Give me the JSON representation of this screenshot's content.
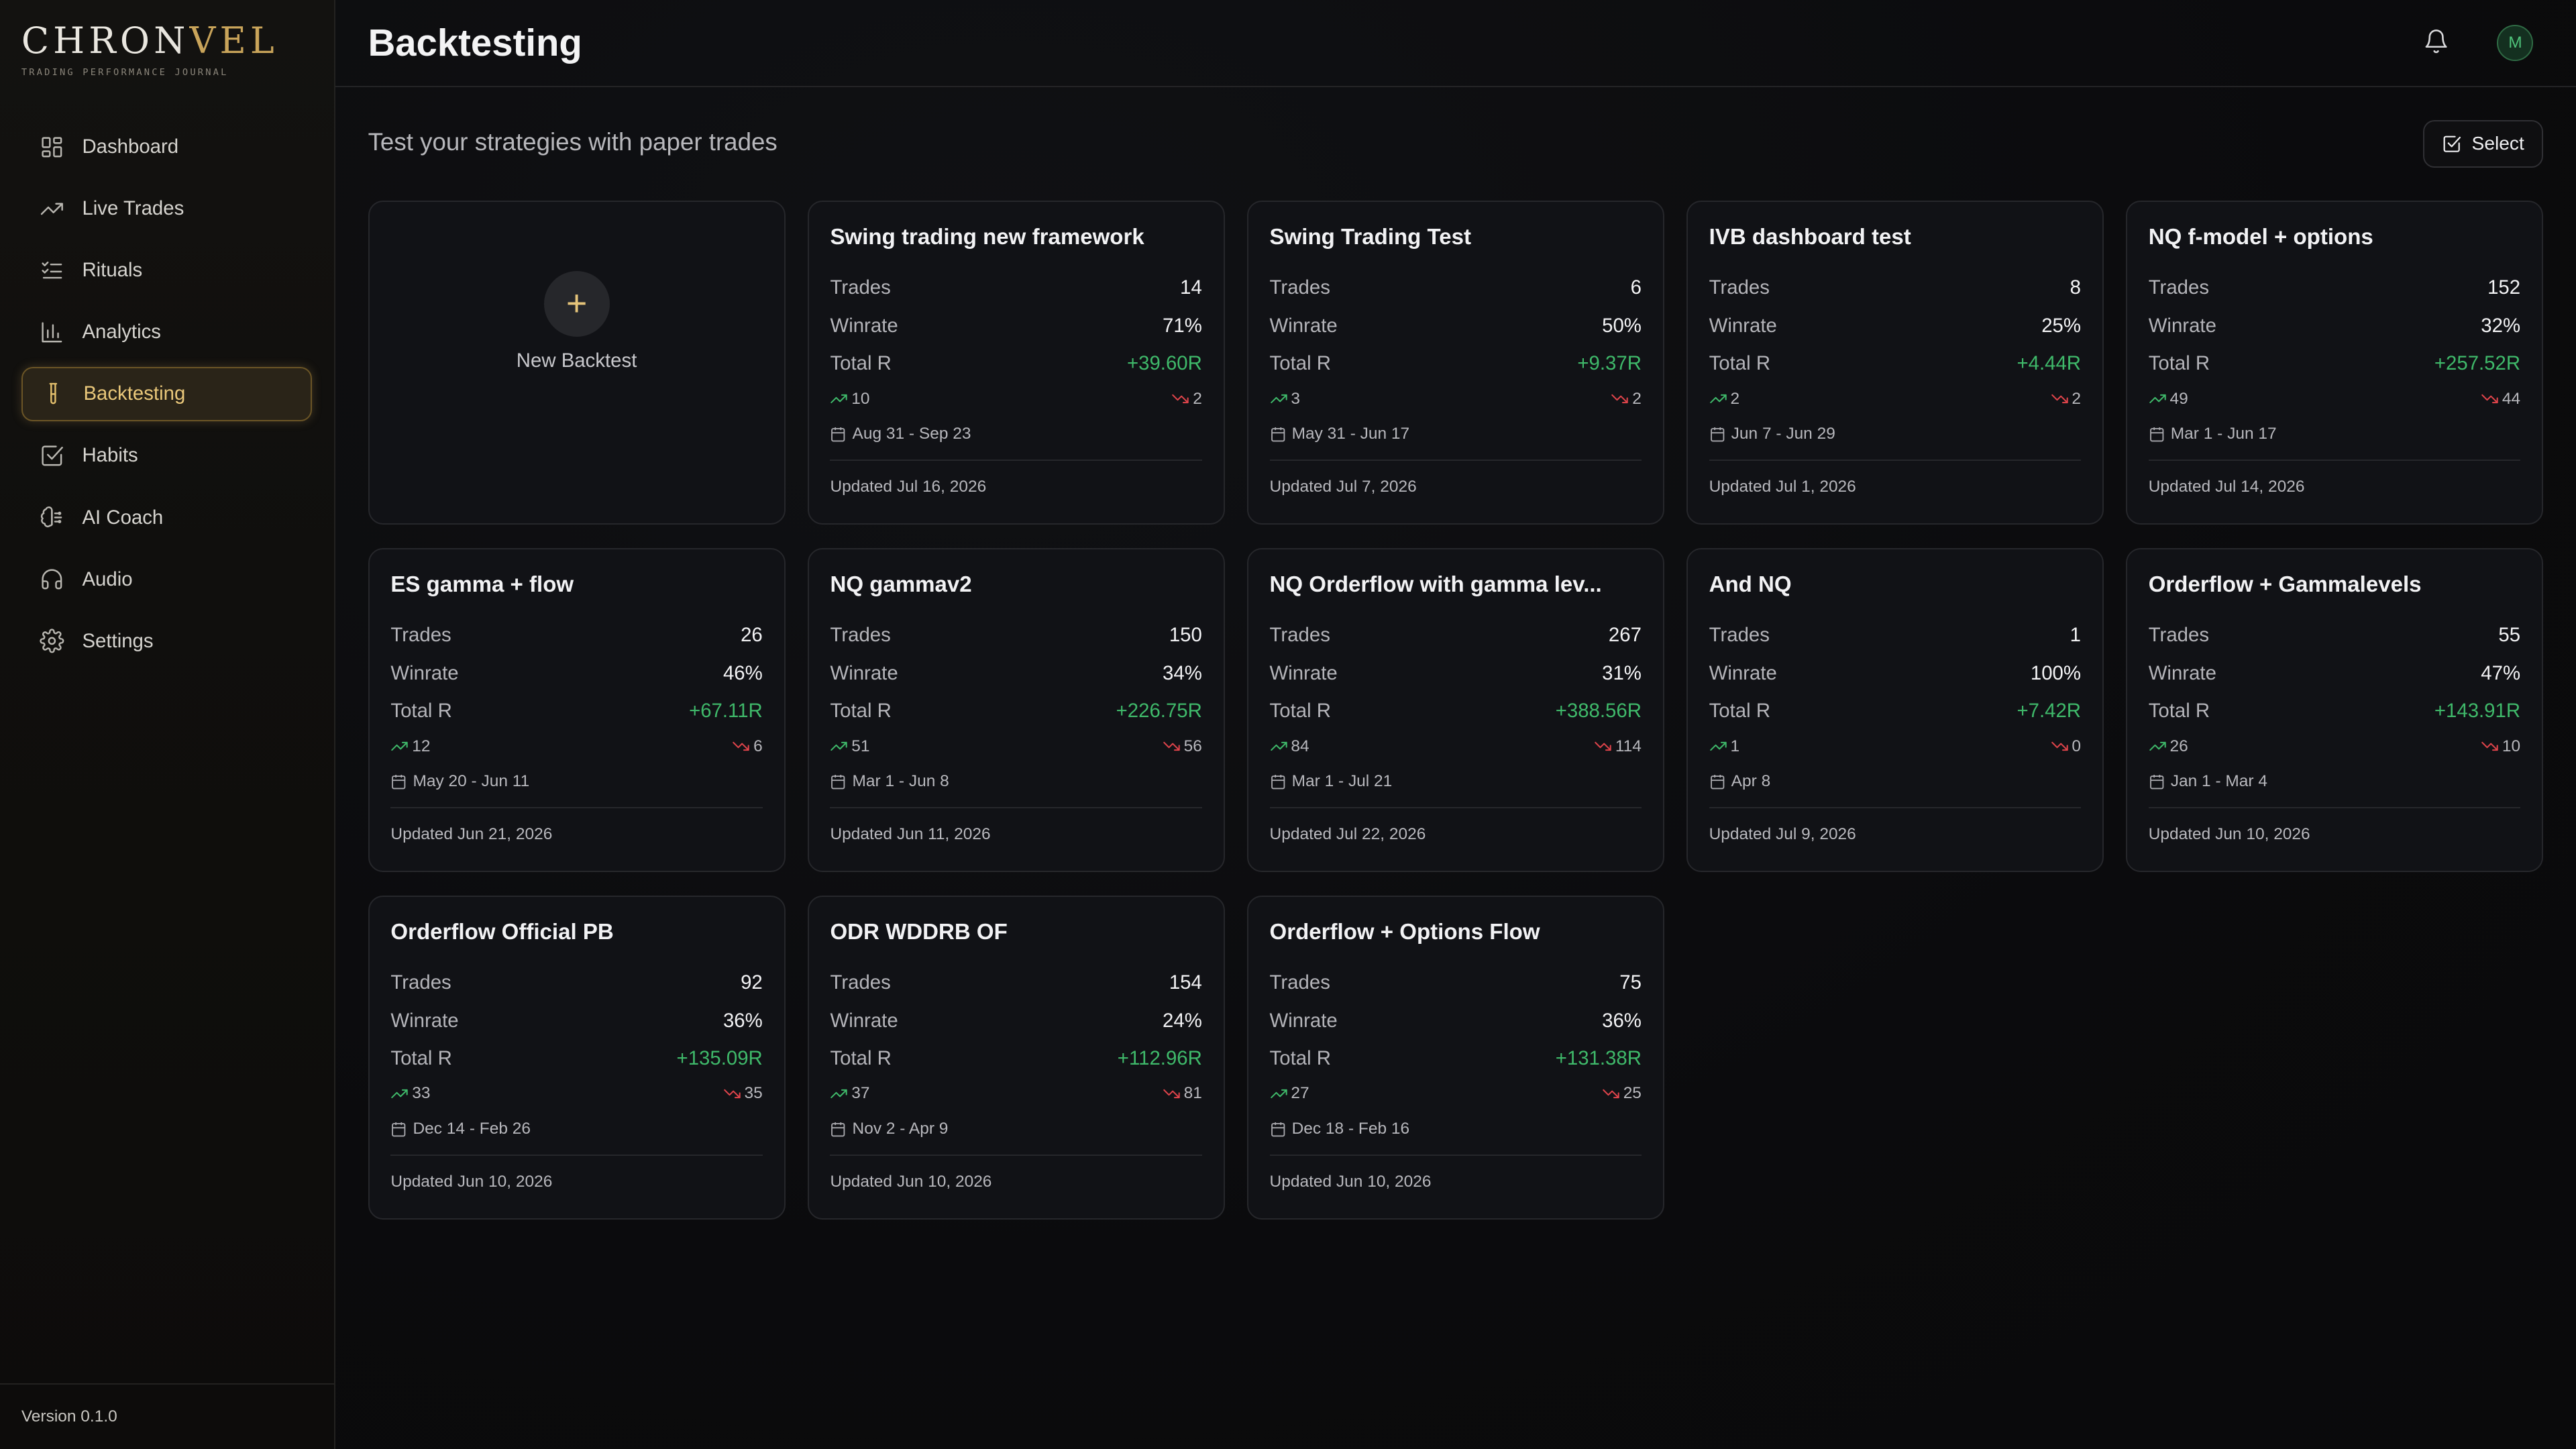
{
  "brand": {
    "name_part1": "CHRON",
    "name_part2": "VEL",
    "tagline": "TRADING PERFORMANCE JOURNAL"
  },
  "sidebar": {
    "items": [
      {
        "label": "Dashboard",
        "icon": "dashboard-icon"
      },
      {
        "label": "Live Trades",
        "icon": "trending-up-icon"
      },
      {
        "label": "Rituals",
        "icon": "checklist-icon"
      },
      {
        "label": "Analytics",
        "icon": "bar-chart-icon"
      },
      {
        "label": "Backtesting",
        "icon": "test-tube-icon",
        "active": true
      },
      {
        "label": "Habits",
        "icon": "checkbox-icon"
      },
      {
        "label": "AI Coach",
        "icon": "brain-icon"
      },
      {
        "label": "Audio",
        "icon": "headphones-icon"
      },
      {
        "label": "Settings",
        "icon": "gear-icon"
      }
    ],
    "version": "Version 0.1.0"
  },
  "header": {
    "title": "Backtesting",
    "avatar_initial": "M"
  },
  "main": {
    "subtitle": "Test your strategies with paper trades",
    "select_label": "Select",
    "new_backtest_label": "New Backtest",
    "stat_labels": {
      "trades": "Trades",
      "winrate": "Winrate",
      "total_r": "Total R"
    }
  },
  "colors": {
    "accent_gold": "#c9a45a",
    "positive_green": "#3fb96a",
    "negative_red": "#e0444b"
  },
  "backtests": [
    {
      "title": "Swing trading new framework",
      "trades": "14",
      "winrate": "71%",
      "total_r": "+39.60R",
      "wins": "10",
      "losses": "2",
      "dates": "Aug 31 - Sep 23",
      "updated": "Updated Jul 16, 2026"
    },
    {
      "title": "Swing Trading Test",
      "trades": "6",
      "winrate": "50%",
      "total_r": "+9.37R",
      "wins": "3",
      "losses": "2",
      "dates": "May 31 - Jun 17",
      "updated": "Updated Jul 7, 2026"
    },
    {
      "title": "IVB dashboard test",
      "trades": "8",
      "winrate": "25%",
      "total_r": "+4.44R",
      "wins": "2",
      "losses": "2",
      "dates": "Jun 7 - Jun 29",
      "updated": "Updated Jul 1, 2026"
    },
    {
      "title": "NQ f-model + options",
      "trades": "152",
      "winrate": "32%",
      "total_r": "+257.52R",
      "wins": "49",
      "losses": "44",
      "dates": "Mar 1 - Jun 17",
      "updated": "Updated Jul 14, 2026"
    },
    {
      "title": "ES gamma + flow",
      "trades": "26",
      "winrate": "46%",
      "total_r": "+67.11R",
      "wins": "12",
      "losses": "6",
      "dates": "May 20 - Jun 11",
      "updated": "Updated Jun 21, 2026"
    },
    {
      "title": "NQ gammav2",
      "trades": "150",
      "winrate": "34%",
      "total_r": "+226.75R",
      "wins": "51",
      "losses": "56",
      "dates": "Mar 1 - Jun 8",
      "updated": "Updated Jun 11, 2026"
    },
    {
      "title": "NQ Orderflow with gamma lev...",
      "trades": "267",
      "winrate": "31%",
      "total_r": "+388.56R",
      "wins": "84",
      "losses": "114",
      "dates": "Mar 1 - Jul 21",
      "updated": "Updated Jul 22, 2026"
    },
    {
      "title": "And NQ",
      "trades": "1",
      "winrate": "100%",
      "total_r": "+7.42R",
      "wins": "1",
      "losses": "0",
      "dates": "Apr 8",
      "updated": "Updated Jul 9, 2026"
    },
    {
      "title": "Orderflow + Gammalevels",
      "trades": "55",
      "winrate": "47%",
      "total_r": "+143.91R",
      "wins": "26",
      "losses": "10",
      "dates": "Jan 1 - Mar 4",
      "updated": "Updated Jun 10, 2026"
    },
    {
      "title": "Orderflow Official PB",
      "trades": "92",
      "winrate": "36%",
      "total_r": "+135.09R",
      "wins": "33",
      "losses": "35",
      "dates": "Dec 14 - Feb 26",
      "updated": "Updated Jun 10, 2026"
    },
    {
      "title": "ODR WDDRB OF",
      "trades": "154",
      "winrate": "24%",
      "total_r": "+112.96R",
      "wins": "37",
      "losses": "81",
      "dates": "Nov 2 - Apr 9",
      "updated": "Updated Jun 10, 2026"
    },
    {
      "title": "Orderflow + Options Flow",
      "trades": "75",
      "winrate": "36%",
      "total_r": "+131.38R",
      "wins": "27",
      "losses": "25",
      "dates": "Dec 18 - Feb 16",
      "updated": "Updated Jun 10, 2026"
    }
  ]
}
